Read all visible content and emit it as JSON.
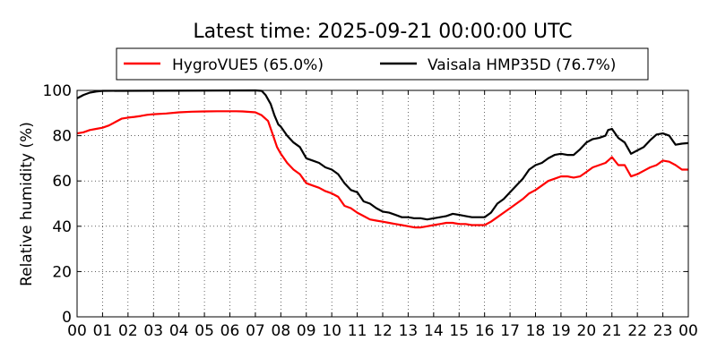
{
  "chart_data": {
    "type": "line",
    "title": "Latest time: 2025-09-21 00:00:00 UTC",
    "xlabel": "",
    "ylabel": "Relative humidity (%)",
    "xlim": [
      0,
      24
    ],
    "ylim": [
      0,
      100
    ],
    "x_ticks": [
      "00",
      "01",
      "02",
      "03",
      "04",
      "05",
      "06",
      "07",
      "08",
      "09",
      "10",
      "11",
      "12",
      "13",
      "14",
      "15",
      "16",
      "17",
      "18",
      "19",
      "20",
      "21",
      "22",
      "23",
      "00"
    ],
    "y_ticks": [
      0,
      20,
      40,
      60,
      80,
      100
    ],
    "grid": true,
    "legend_position": "top",
    "series": [
      {
        "name": "HygroVUE5 (65.0%)",
        "color": "#ff0000",
        "x": [
          0.0,
          0.25,
          0.5,
          0.75,
          1.0,
          1.25,
          1.5,
          1.75,
          2.0,
          2.25,
          2.5,
          2.75,
          3.0,
          3.5,
          4.0,
          4.5,
          5.0,
          5.5,
          6.0,
          6.25,
          6.5,
          7.0,
          7.25,
          7.5,
          7.7,
          7.85,
          8.0,
          8.25,
          8.5,
          8.75,
          9.0,
          9.25,
          9.5,
          9.75,
          10.0,
          10.25,
          10.5,
          10.75,
          11.0,
          11.25,
          11.5,
          11.75,
          12.0,
          12.25,
          12.5,
          12.75,
          13.0,
          13.25,
          13.5,
          13.75,
          14.0,
          14.25,
          14.5,
          14.75,
          15.0,
          15.25,
          15.5,
          15.75,
          16.0,
          16.25,
          16.5,
          16.75,
          17.0,
          17.25,
          17.5,
          17.75,
          18.0,
          18.25,
          18.5,
          18.75,
          19.0,
          19.25,
          19.5,
          19.75,
          20.0,
          20.25,
          20.5,
          20.75,
          20.9,
          21.0,
          21.25,
          21.5,
          21.75,
          22.0,
          22.25,
          22.5,
          22.75,
          23.0,
          23.25,
          23.5,
          23.75,
          24.0
        ],
        "values": [
          81,
          81.5,
          82.5,
          83,
          83.5,
          84.5,
          86,
          87.5,
          88,
          88.3,
          88.7,
          89.2,
          89.5,
          89.8,
          90.3,
          90.6,
          90.7,
          90.8,
          90.8,
          90.8,
          90.7,
          90.3,
          89,
          86.5,
          80,
          75,
          72,
          68,
          65,
          63,
          59,
          58,
          57,
          55.5,
          54.5,
          53,
          49,
          48,
          46,
          44.5,
          43,
          42.5,
          42,
          41.5,
          41,
          40.5,
          40,
          39.5,
          39.5,
          40,
          40.5,
          41,
          41.5,
          41.5,
          41,
          41,
          40.5,
          40.5,
          40.5,
          42,
          44,
          46,
          48,
          50,
          52,
          54.5,
          56,
          58,
          60,
          61,
          62,
          62,
          61.5,
          62,
          64,
          66,
          67,
          68,
          69.5,
          70.5,
          67,
          67,
          62,
          63,
          64.5,
          66,
          67,
          69,
          68.5,
          67,
          65,
          65
        ]
      },
      {
        "name": "Vaisala HMP35D (76.7%)",
        "color": "#000000",
        "x": [
          0.0,
          0.25,
          0.5,
          0.75,
          1.0,
          7.0,
          7.25,
          7.4,
          7.6,
          7.75,
          7.9,
          8.0,
          8.25,
          8.5,
          8.75,
          9.0,
          9.25,
          9.5,
          9.75,
          10.0,
          10.25,
          10.5,
          10.75,
          11.0,
          11.25,
          11.5,
          11.75,
          12.0,
          12.25,
          12.5,
          12.75,
          13.0,
          13.25,
          13.5,
          13.75,
          14.0,
          14.25,
          14.5,
          14.75,
          15.0,
          15.25,
          15.5,
          15.75,
          16.0,
          16.25,
          16.5,
          16.75,
          17.0,
          17.25,
          17.5,
          17.75,
          18.0,
          18.25,
          18.5,
          18.75,
          19.0,
          19.25,
          19.5,
          19.75,
          20.0,
          20.25,
          20.5,
          20.75,
          20.85,
          21.0,
          21.25,
          21.5,
          21.75,
          22.0,
          22.25,
          22.5,
          22.75,
          23.0,
          23.25,
          23.5,
          23.75,
          24.0
        ],
        "values": [
          96.5,
          98,
          99,
          99.5,
          99.8,
          100,
          99.8,
          98,
          94,
          89,
          85,
          84,
          80,
          77,
          75,
          70,
          69,
          68,
          66,
          65,
          63,
          59,
          56,
          55,
          51,
          50,
          48,
          46.5,
          46,
          45,
          44,
          44,
          43.5,
          43.5,
          43,
          43.5,
          44,
          44.5,
          45.5,
          45,
          44.5,
          44,
          44,
          44,
          46,
          50,
          52,
          55,
          58,
          61,
          65,
          67,
          68,
          70,
          71.5,
          72,
          71.5,
          71.5,
          74,
          77,
          78.5,
          79,
          80,
          82.5,
          83,
          79,
          77,
          72,
          73.5,
          75,
          78,
          80.5,
          81,
          80,
          76,
          76.5,
          76.7
        ]
      }
    ]
  }
}
